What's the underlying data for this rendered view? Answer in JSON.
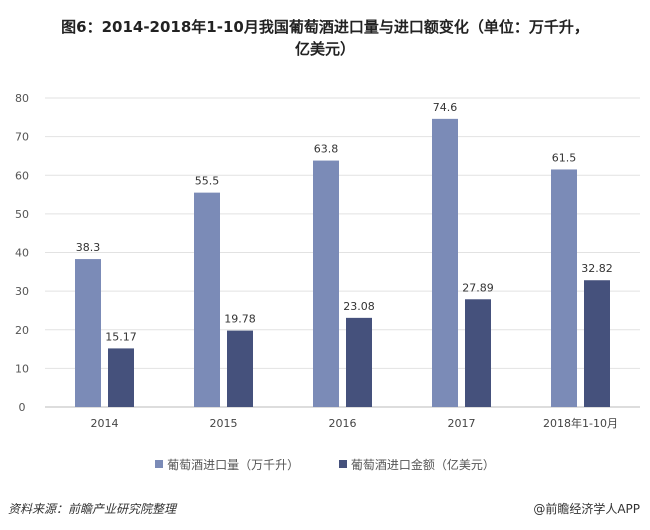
{
  "title_line1": "图6：2014-2018年1-10月我国葡萄酒进口量与进口额变化（单位：万千升，",
  "title_line2": "亿美元）",
  "source": "资料来源：前瞻产业研究院整理",
  "brand": "@前瞻经济学人APP",
  "chart_data": {
    "type": "bar",
    "categories": [
      "2014",
      "2015",
      "2016",
      "2017",
      "2018年1-10月"
    ],
    "series": [
      {
        "name": "葡萄酒进口量（万千升）",
        "values": [
          38.3,
          55.5,
          63.8,
          74.6,
          61.5
        ],
        "labels": [
          "38.3",
          "55.5",
          "63.8",
          "74.6",
          "61.5"
        ],
        "color": "#7b8bb7"
      },
      {
        "name": "葡萄酒进口金额（亿美元）",
        "values": [
          15.17,
          19.78,
          23.08,
          27.89,
          32.82
        ],
        "labels": [
          "15.17",
          "19.78",
          "23.08",
          "27.89",
          "32.82"
        ],
        "color": "#45517c"
      }
    ],
    "yticks": [
      "0",
      "10",
      "20",
      "30",
      "40",
      "50",
      "60",
      "70",
      "80"
    ],
    "ylim": [
      0,
      80
    ],
    "grid": true,
    "legend": "bottom"
  }
}
